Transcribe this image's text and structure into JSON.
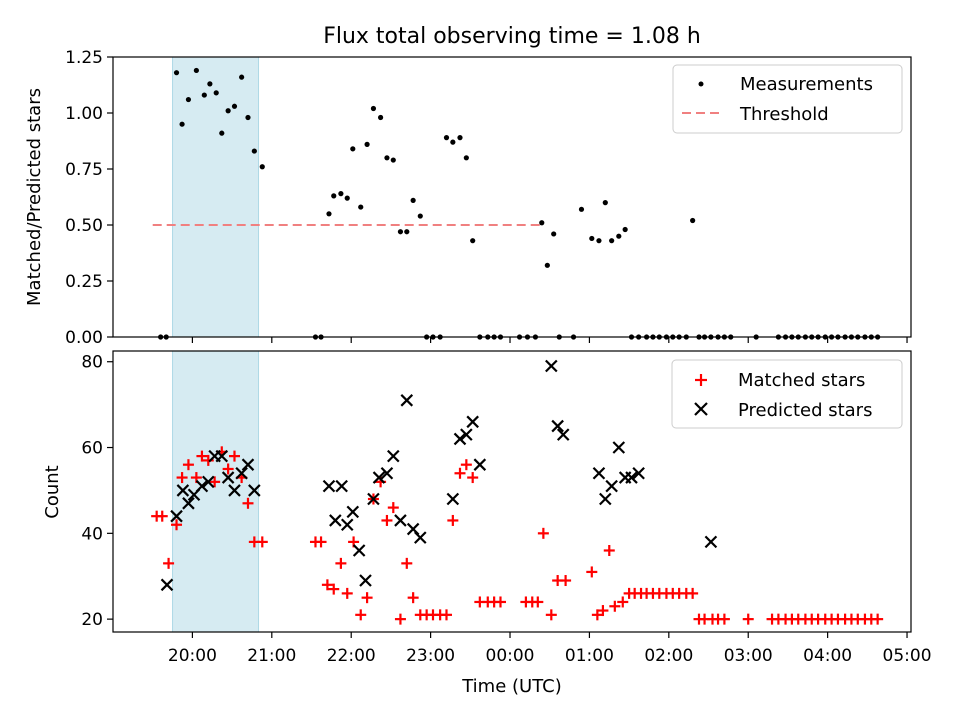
{
  "chart_data": [
    {
      "type": "scatter",
      "title": "Flux total observing time = 1.08 h",
      "xlabel": "",
      "ylabel": "Matched/Predicted stars",
      "ylim": [
        0,
        1.25
      ],
      "yticks": [
        "0.00",
        "0.25",
        "0.50",
        "0.75",
        "1.00",
        "1.25"
      ],
      "ytick_values": [
        0,
        0.25,
        0.5,
        0.75,
        1.0,
        1.25
      ],
      "shaded_span": [
        19.75,
        20.833
      ],
      "threshold": {
        "name": "Threshold",
        "value": 0.5,
        "x_range": [
          19.5,
          24.4
        ],
        "color": "#f08080"
      },
      "legend": [
        {
          "label": "Measurements",
          "marker": "dot"
        },
        {
          "label": "Threshold",
          "marker": "dash"
        }
      ],
      "series": [
        {
          "name": "Measurements",
          "color": "#000000",
          "x": [
            19.6,
            19.67,
            19.8,
            19.87,
            19.95,
            20.05,
            20.15,
            20.22,
            20.3,
            20.37,
            20.45,
            20.53,
            20.62,
            20.7,
            20.78,
            20.88,
            21.55,
            21.62,
            21.72,
            21.78,
            21.87,
            21.95,
            22.02,
            22.12,
            22.2,
            22.28,
            22.37,
            22.45,
            22.53,
            22.62,
            22.7,
            22.78,
            22.87,
            22.95,
            23.03,
            23.12,
            23.2,
            23.28,
            23.37,
            23.45,
            23.53,
            23.62,
            23.72,
            23.8,
            23.88,
            24.12,
            24.22,
            24.32,
            24.4,
            24.47,
            24.55,
            24.62,
            24.8,
            24.9,
            25.03,
            25.12,
            25.2,
            25.28,
            25.37,
            25.45,
            25.53,
            25.62,
            25.72,
            25.8,
            25.88,
            25.97,
            26.05,
            26.13,
            26.22,
            26.3,
            26.38,
            26.45,
            26.53,
            26.62,
            26.7,
            26.78,
            27.1,
            27.38,
            27.47,
            27.55,
            27.63,
            27.72,
            27.8,
            27.88,
            27.97,
            28.05,
            28.13,
            28.22,
            28.3,
            28.38,
            28.47,
            28.55,
            28.63
          ],
          "y": [
            0,
            0,
            1.18,
            0.95,
            1.06,
            1.19,
            1.08,
            1.13,
            1.09,
            0.91,
            1.01,
            1.03,
            1.16,
            0.98,
            0.83,
            0.76,
            0,
            0,
            0.55,
            0.63,
            0.64,
            0.62,
            0.84,
            0.58,
            0.86,
            1.02,
            0.98,
            0.8,
            0.79,
            0.47,
            0.47,
            0.61,
            0.54,
            0,
            0,
            0,
            0.89,
            0.87,
            0.89,
            0.8,
            0.43,
            0,
            0,
            0,
            0,
            0,
            0,
            0,
            0.51,
            0.32,
            0.46,
            0,
            0,
            0.57,
            0.44,
            0.43,
            0.6,
            0.43,
            0.45,
            0.48,
            0,
            0,
            0,
            0,
            0,
            0,
            0,
            0,
            0,
            0.52,
            0,
            0,
            0,
            0,
            0,
            0,
            0,
            0,
            0,
            0,
            0,
            0,
            0,
            0,
            0,
            0,
            0,
            0,
            0,
            0,
            0,
            0,
            0
          ]
        }
      ]
    },
    {
      "type": "scatter",
      "title": "",
      "xlabel": "Time (UTC)",
      "ylabel": "Count",
      "ylim": [
        17,
        82.5
      ],
      "yticks": [
        "20",
        "40",
        "60",
        "80"
      ],
      "ytick_values": [
        20,
        40,
        60,
        80
      ],
      "xlim": [
        19.0,
        29.05
      ],
      "xticks": [
        "20:00",
        "21:00",
        "22:00",
        "23:00",
        "00:00",
        "01:00",
        "02:00",
        "03:00",
        "04:00",
        "05:00"
      ],
      "xtick_values": [
        20,
        21,
        22,
        23,
        24,
        25,
        26,
        27,
        28,
        29
      ],
      "shaded_span": [
        19.75,
        20.833
      ],
      "legend": [
        {
          "label": "Matched stars",
          "marker": "plus",
          "color": "#ff0000"
        },
        {
          "label": "Predicted stars",
          "marker": "x",
          "color": "#000000"
        }
      ],
      "series": [
        {
          "name": "Matched stars",
          "color": "#ff0000",
          "x": [
            19.55,
            19.62,
            19.7,
            19.8,
            19.87,
            19.95,
            20.05,
            20.12,
            20.2,
            20.28,
            20.37,
            20.45,
            20.53,
            20.62,
            20.7,
            20.78,
            20.88,
            21.55,
            21.62,
            21.7,
            21.78,
            21.87,
            21.95,
            22.03,
            22.12,
            22.2,
            22.28,
            22.37,
            22.45,
            22.53,
            22.62,
            22.7,
            22.78,
            22.87,
            22.95,
            23.03,
            23.12,
            23.2,
            23.28,
            23.37,
            23.45,
            23.53,
            23.62,
            23.72,
            23.8,
            23.88,
            24.2,
            24.28,
            24.35,
            24.42,
            24.52,
            24.6,
            24.7,
            25.03,
            25.1,
            25.17,
            25.25,
            25.32,
            25.42,
            25.5,
            25.57,
            25.65,
            25.72,
            25.8,
            25.88,
            25.97,
            26.05,
            26.13,
            26.22,
            26.3,
            26.38,
            26.45,
            26.55,
            26.62,
            26.7,
            27.0,
            27.3,
            27.38,
            27.47,
            27.55,
            27.63,
            27.72,
            27.8,
            27.88,
            27.97,
            28.05,
            28.13,
            28.22,
            28.3,
            28.38,
            28.47,
            28.55,
            28.63
          ],
          "y": [
            44,
            44,
            33,
            42,
            53,
            56,
            53,
            58,
            57,
            52,
            59,
            55,
            58,
            53,
            47,
            38,
            38,
            38,
            38,
            28,
            27,
            33,
            26,
            38,
            21,
            25,
            48,
            52,
            43,
            46,
            20,
            33,
            25,
            21,
            21,
            21,
            21,
            21,
            43,
            54,
            56,
            53,
            24,
            24,
            24,
            24,
            24,
            24,
            24,
            40,
            21,
            29,
            29,
            31,
            21,
            22,
            36,
            23,
            24,
            26,
            26,
            26,
            26,
            26,
            26,
            26,
            26,
            26,
            26,
            26,
            20,
            20,
            20,
            20,
            20,
            20,
            20,
            20,
            20,
            20,
            20,
            20,
            20,
            20,
            20,
            20,
            20,
            20,
            20,
            20,
            20,
            20,
            20
          ],
          "_note": "series truncated to match visible plus markers"
        },
        {
          "name": "Predicted stars",
          "color": "#000000",
          "x": [
            19.68,
            19.8,
            19.88,
            19.95,
            20.02,
            20.12,
            20.2,
            20.28,
            20.37,
            20.45,
            20.53,
            20.62,
            20.7,
            20.78,
            21.72,
            21.8,
            21.88,
            21.95,
            22.02,
            22.1,
            22.18,
            22.28,
            22.35,
            22.45,
            22.53,
            22.62,
            22.7,
            22.78,
            22.87,
            23.28,
            23.37,
            23.45,
            23.53,
            23.62,
            24.52,
            24.6,
            24.67,
            25.12,
            25.2,
            25.28,
            25.37,
            25.45,
            25.53,
            25.62,
            26.53
          ],
          "y": [
            28,
            44,
            50,
            47,
            49,
            51,
            52,
            58,
            58,
            53,
            50,
            54,
            56,
            50,
            51,
            43,
            51,
            42,
            45,
            36,
            29,
            48,
            53,
            54,
            58,
            43,
            71,
            41,
            39,
            48,
            62,
            63,
            66,
            56,
            79,
            65,
            63,
            54,
            48,
            51,
            60,
            53,
            53,
            54,
            38
          ]
        }
      ]
    }
  ]
}
